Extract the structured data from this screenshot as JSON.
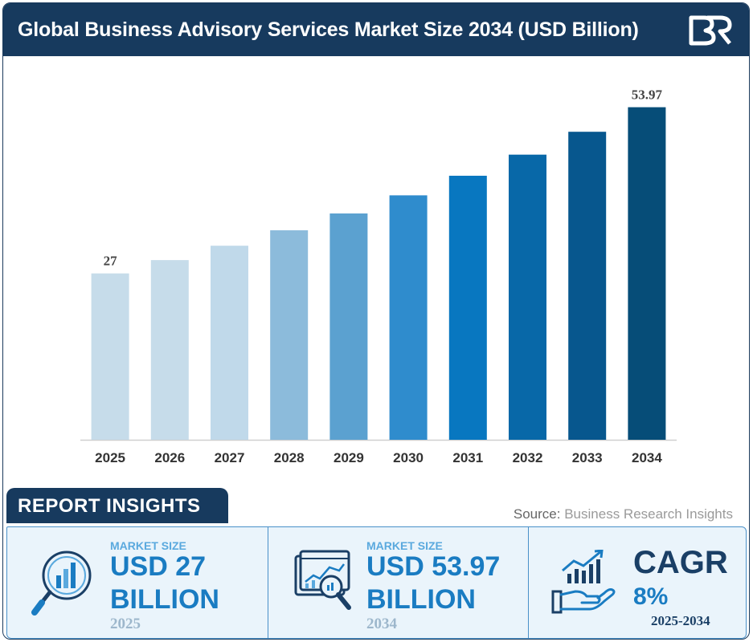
{
  "header": {
    "title": "Global Business Advisory Services Market Size 2034 (USD Billion)",
    "logo_text": "BR"
  },
  "chart_data": {
    "type": "bar",
    "title": "Global Business Advisory Services Market Size 2034 (USD Billion)",
    "categories": [
      "2025",
      "2026",
      "2027",
      "2028",
      "2029",
      "2030",
      "2031",
      "2032",
      "2033",
      "2034"
    ],
    "values": [
      27,
      29.16,
      31.49,
      34.01,
      36.73,
      39.67,
      42.85,
      46.27,
      49.98,
      53.97
    ],
    "labeled_values": [
      "27",
      "",
      "",
      "",
      "",
      "",
      "",
      "",
      "",
      "53.97"
    ],
    "colors": [
      "#c6dcea",
      "#c6dcea",
      "#c0d9ea",
      "#8cbbdb",
      "#5ba1d0",
      "#2f8ccd",
      "#0877c0",
      "#0868a8",
      "#07578e",
      "#064d78"
    ],
    "xlabel": "",
    "ylabel": "",
    "ylim": [
      0,
      56
    ],
    "grid": false
  },
  "insights": {
    "tab_label": "REPORT INSIGHTS",
    "source_label": "Source:",
    "source_value": "Business Research Insights",
    "cards": [
      {
        "icon": "magnifier-chart-icon",
        "kicker": "MARKET SIZE",
        "line1": "USD 27",
        "line2": "BILLION",
        "year": "2025"
      },
      {
        "icon": "analytics-screen-icon",
        "kicker": "MARKET SIZE",
        "line1": "USD 53.97",
        "line2": "BILLION",
        "year": "2034"
      }
    ],
    "cagr": {
      "icon": "hand-growth-icon",
      "label": "CAGR",
      "value": "8%",
      "period": "2025-2034"
    }
  },
  "colors": {
    "primary": "#173a5e",
    "accent": "#1a7cc2",
    "light": "#eaf4fb"
  }
}
